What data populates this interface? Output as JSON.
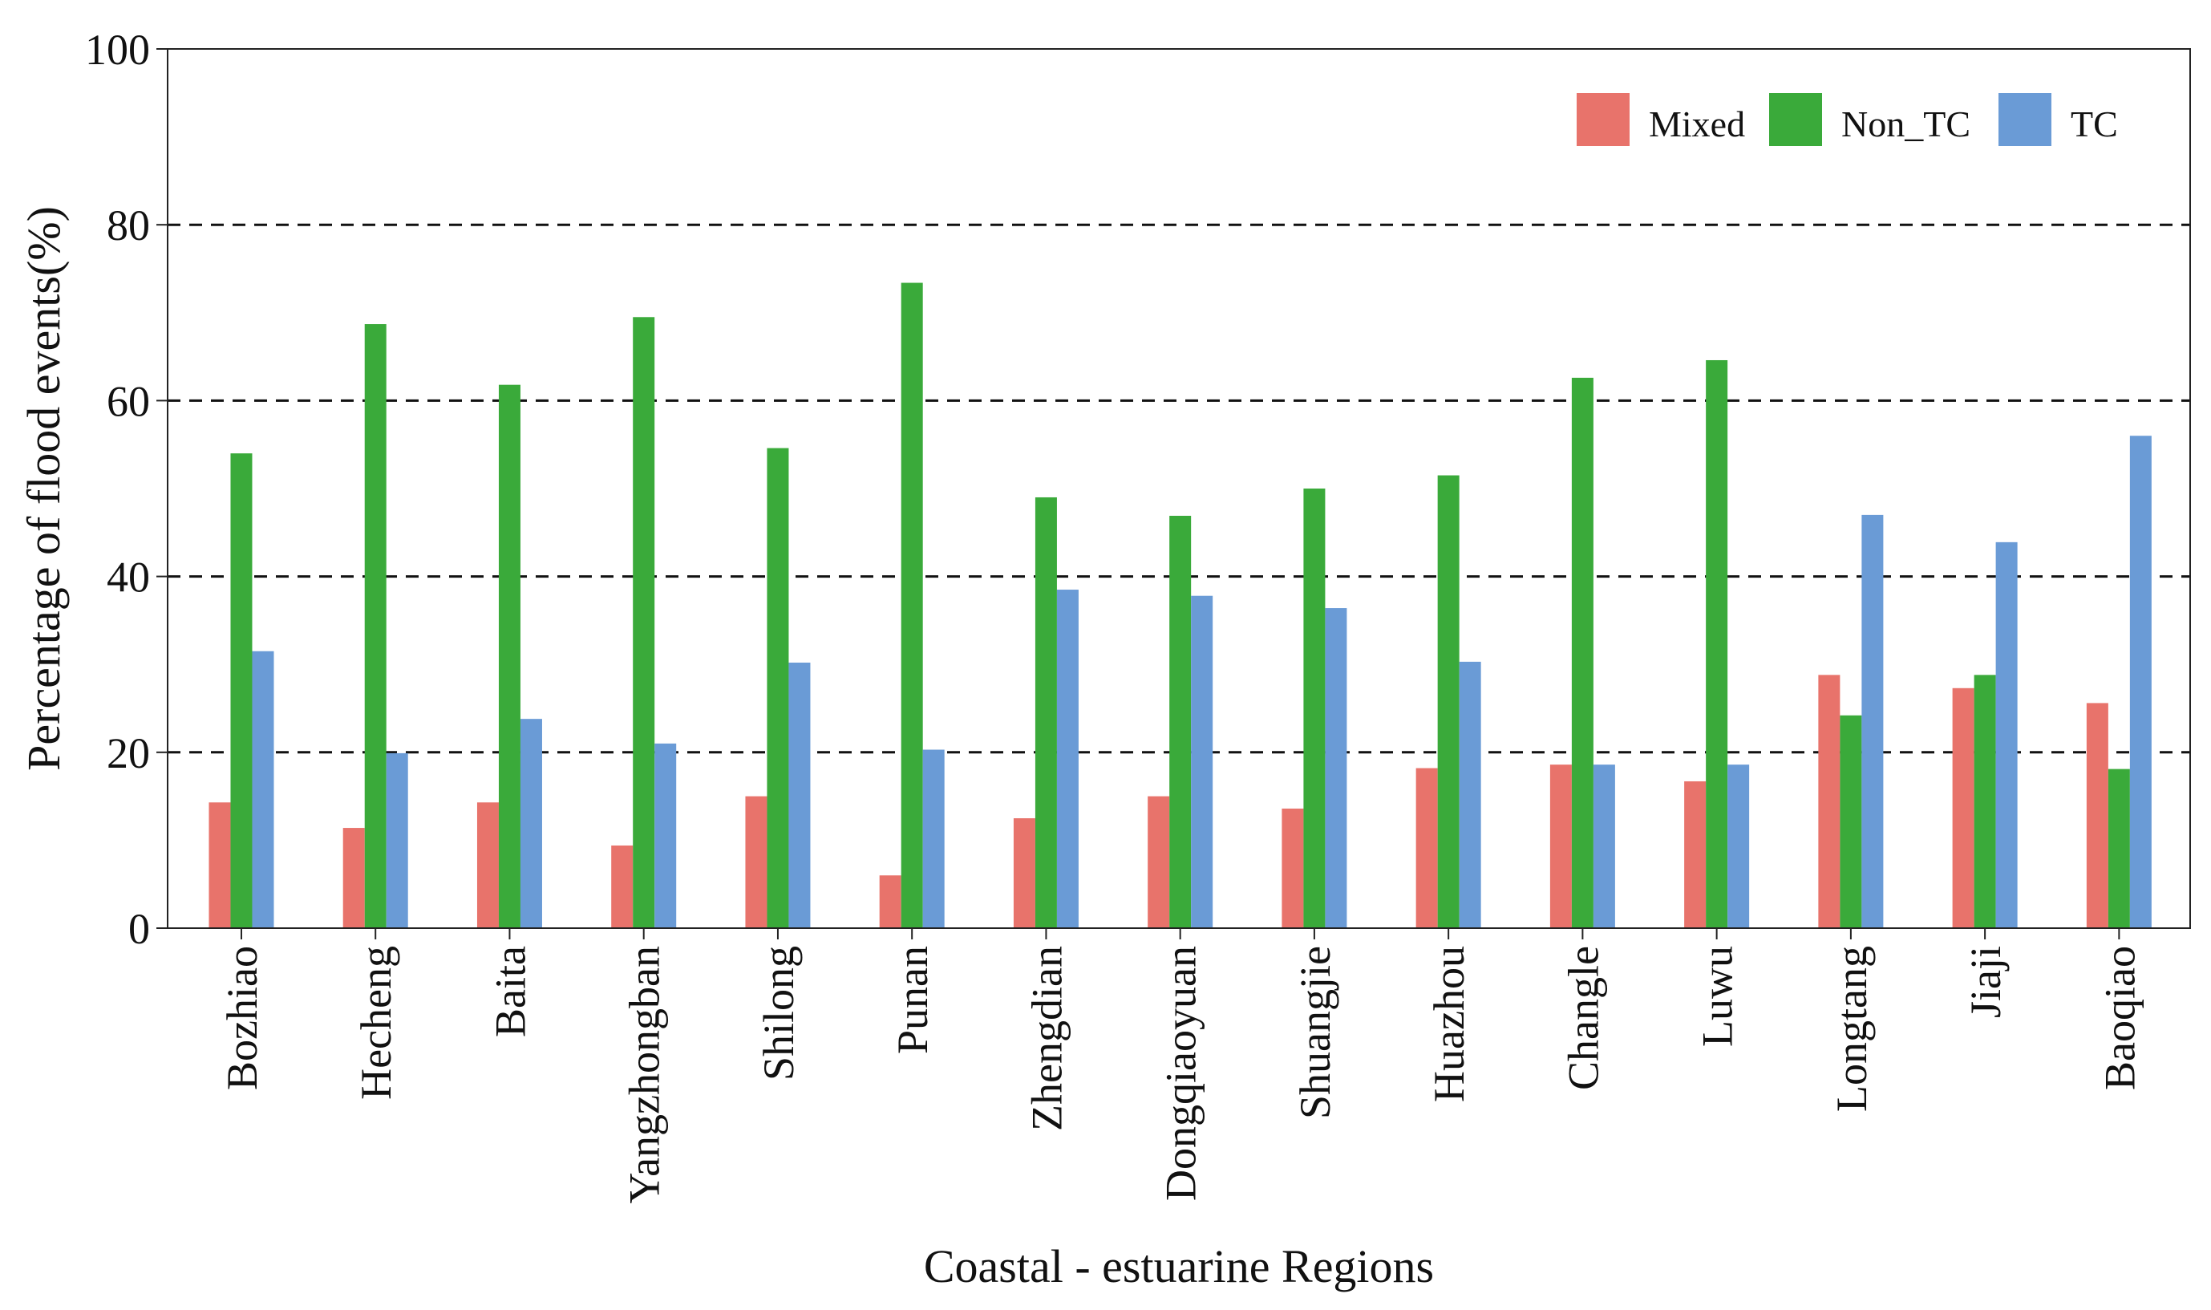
{
  "chart_data": {
    "type": "bar",
    "xlabel": "Coastal - estuarine Regions",
    "ylabel": "Percentage of flood events(%)",
    "ylim": [
      0,
      100
    ],
    "yticks": [
      0,
      20,
      40,
      60,
      80,
      100
    ],
    "dashed_gridlines": [
      20,
      40,
      60,
      80
    ],
    "legend_position": "top-right",
    "categories": [
      "Bozhiao",
      "Hecheng",
      "Baita",
      "Yangzhongban",
      "Shilong",
      "Punan",
      "Zhengdian",
      "Dongqiaoyuan",
      "Shuangjie",
      "Huazhou",
      "Changle",
      "Luwu",
      "Longtang",
      "Jiaji",
      "Baoqiao"
    ],
    "series": [
      {
        "name": "Mixed",
        "color": "#E8736B",
        "values": [
          14.3,
          11.4,
          14.3,
          9.4,
          15.0,
          6.0,
          12.5,
          15.0,
          13.6,
          18.2,
          18.6,
          16.7,
          28.8,
          27.3,
          25.6
        ]
      },
      {
        "name": "Non_TC",
        "color": "#3AAA3A",
        "values": [
          54.0,
          68.7,
          61.8,
          69.5,
          54.6,
          73.4,
          49.0,
          46.9,
          50.0,
          51.5,
          62.6,
          64.6,
          24.2,
          28.8,
          18.1
        ]
      },
      {
        "name": "TC",
        "color": "#6A9BD6",
        "values": [
          31.5,
          19.9,
          23.8,
          21.0,
          30.2,
          20.3,
          38.5,
          37.8,
          36.4,
          30.3,
          18.6,
          18.6,
          47.0,
          43.9,
          56.0
        ]
      }
    ]
  }
}
